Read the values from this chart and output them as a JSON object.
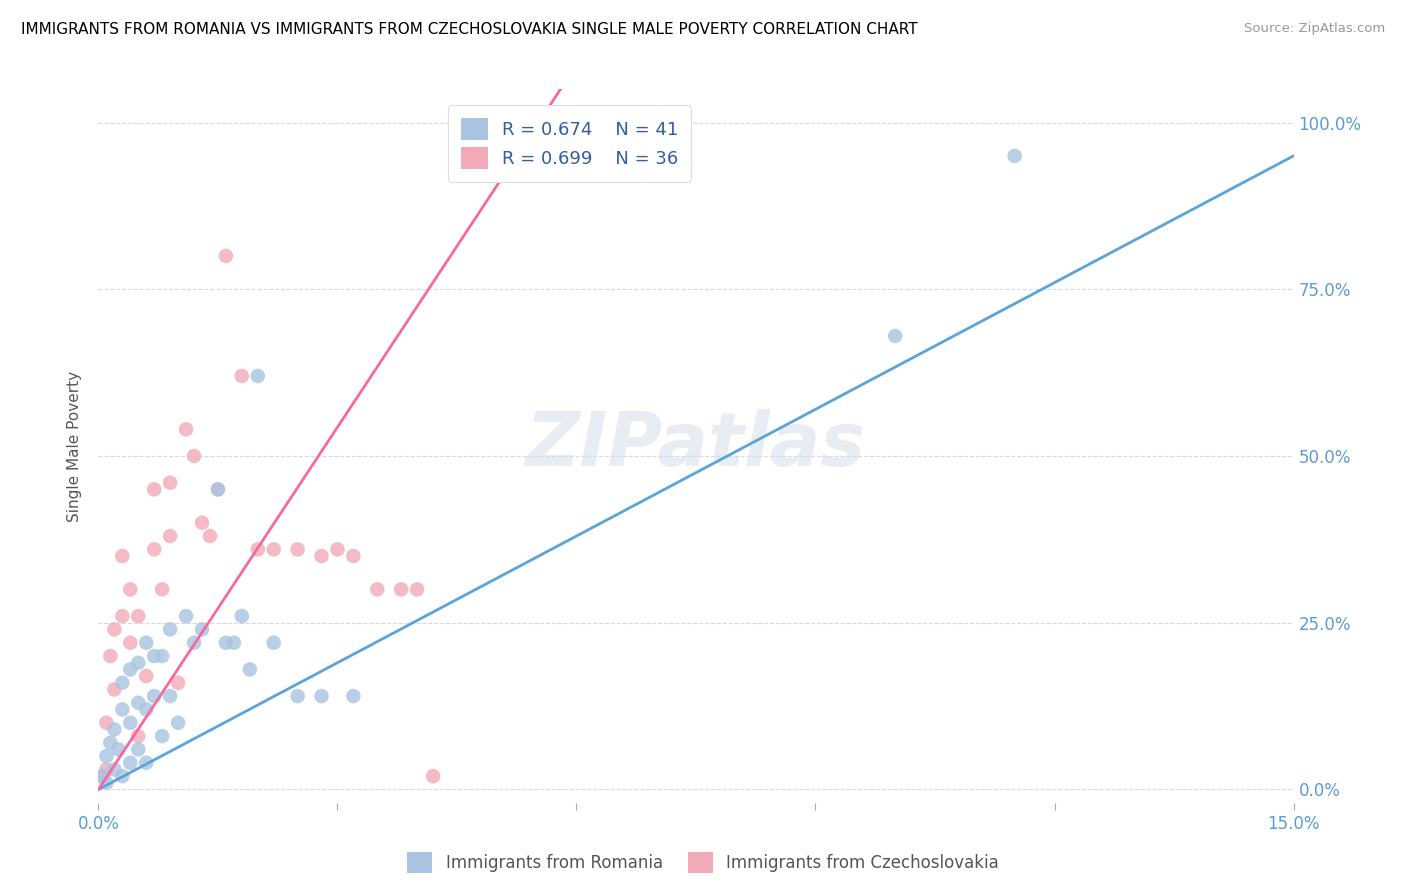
{
  "title": "IMMIGRANTS FROM ROMANIA VS IMMIGRANTS FROM CZECHOSLOVAKIA SINGLE MALE POVERTY CORRELATION CHART",
  "source": "Source: ZipAtlas.com",
  "ylabel": "Single Male Poverty",
  "yticks": [
    "0.0%",
    "25.0%",
    "50.0%",
    "75.0%",
    "100.0%"
  ],
  "ytick_vals": [
    0.0,
    0.25,
    0.5,
    0.75,
    1.0
  ],
  "xticks_vals": [
    0.0,
    0.03,
    0.06,
    0.09,
    0.12,
    0.15
  ],
  "xtick_labels": [
    "0.0%",
    "",
    "",
    "",
    "",
    "15.0%"
  ],
  "xlim": [
    0.0,
    0.15
  ],
  "ylim": [
    -0.02,
    1.05
  ],
  "watermark": "ZIPatlas",
  "legend_r1": "R = 0.674",
  "legend_n1": "N = 41",
  "legend_r2": "R = 0.699",
  "legend_n2": "N = 36",
  "color_romania": "#a8c4e0",
  "color_czechoslovakia": "#f2aab8",
  "line_color_romania": "#5ba3d9",
  "line_color_czechoslovakia": "#f768a1",
  "romania_x": [
    0.0005,
    0.001,
    0.001,
    0.0015,
    0.002,
    0.002,
    0.0025,
    0.003,
    0.003,
    0.003,
    0.004,
    0.004,
    0.004,
    0.005,
    0.005,
    0.005,
    0.006,
    0.006,
    0.006,
    0.007,
    0.007,
    0.008,
    0.008,
    0.009,
    0.009,
    0.01,
    0.011,
    0.012,
    0.013,
    0.015,
    0.016,
    0.017,
    0.018,
    0.019,
    0.02,
    0.022,
    0.025,
    0.028,
    0.032,
    0.1,
    0.115
  ],
  "romania_y": [
    0.02,
    0.01,
    0.05,
    0.07,
    0.03,
    0.09,
    0.06,
    0.12,
    0.16,
    0.02,
    0.04,
    0.1,
    0.18,
    0.06,
    0.13,
    0.19,
    0.04,
    0.12,
    0.22,
    0.14,
    0.2,
    0.08,
    0.2,
    0.14,
    0.24,
    0.1,
    0.26,
    0.22,
    0.24,
    0.45,
    0.22,
    0.22,
    0.26,
    0.18,
    0.62,
    0.22,
    0.14,
    0.14,
    0.14,
    0.68,
    0.95
  ],
  "czechoslovakia_x": [
    0.0005,
    0.001,
    0.001,
    0.0015,
    0.002,
    0.002,
    0.003,
    0.003,
    0.004,
    0.004,
    0.005,
    0.005,
    0.006,
    0.007,
    0.007,
    0.008,
    0.009,
    0.009,
    0.01,
    0.011,
    0.012,
    0.013,
    0.014,
    0.015,
    0.016,
    0.018,
    0.02,
    0.022,
    0.025,
    0.028,
    0.03,
    0.032,
    0.035,
    0.038,
    0.04,
    0.042
  ],
  "czechoslovakia_y": [
    0.02,
    0.03,
    0.1,
    0.2,
    0.15,
    0.24,
    0.26,
    0.35,
    0.22,
    0.3,
    0.08,
    0.26,
    0.17,
    0.36,
    0.45,
    0.3,
    0.38,
    0.46,
    0.16,
    0.54,
    0.5,
    0.4,
    0.38,
    0.45,
    0.8,
    0.62,
    0.36,
    0.36,
    0.36,
    0.35,
    0.36,
    0.35,
    0.3,
    0.3,
    0.3,
    0.02
  ],
  "blue_line": {
    "x0": 0.0,
    "x1": 0.15,
    "y0": 0.0,
    "y1": 0.95
  },
  "pink_line": {
    "x0": 0.0,
    "x1": 0.058,
    "y0": 0.0,
    "y1": 1.05
  }
}
